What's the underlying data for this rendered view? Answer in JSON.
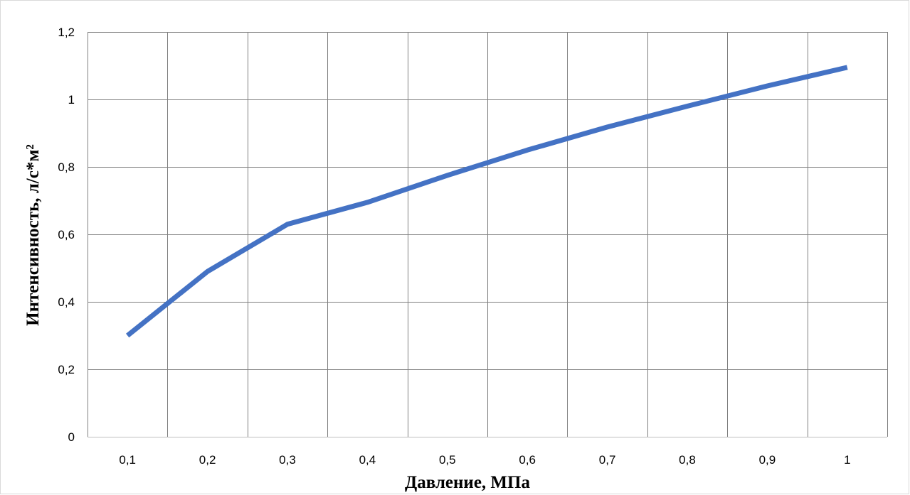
{
  "chart_data": {
    "type": "line",
    "xlabel": "Давление, МПа",
    "ylabel": "Интенсивность, л/с*м²",
    "categories": [
      "0,1",
      "0,2",
      "0,3",
      "0,4",
      "0,5",
      "0,6",
      "0,7",
      "0,8",
      "0,9",
      "1"
    ],
    "series": [
      {
        "values": [
          0.3,
          0.49,
          0.63,
          0.695,
          0.775,
          0.85,
          0.918,
          0.98,
          1.04,
          1.095
        ],
        "color": "#4472c4"
      }
    ],
    "ylim": [
      0,
      1.2
    ],
    "y_ticks": [
      {
        "value": 0,
        "label": "0"
      },
      {
        "value": 0.2,
        "label": "0,2"
      },
      {
        "value": 0.4,
        "label": "0,4"
      },
      {
        "value": 0.6,
        "label": "0,6"
      },
      {
        "value": 0.8,
        "label": "0,8"
      },
      {
        "value": 1.0,
        "label": "1"
      },
      {
        "value": 1.2,
        "label": "1,2"
      }
    ],
    "grid": true,
    "gridline_color": "#808080",
    "legend": "none"
  }
}
